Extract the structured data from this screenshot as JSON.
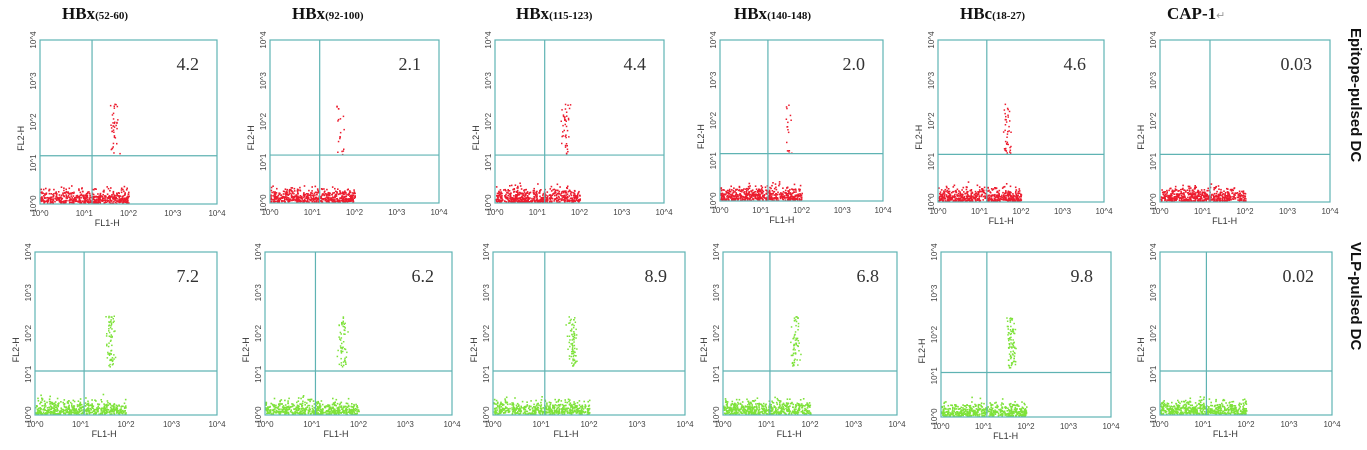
{
  "columns": [
    {
      "name": "HBx",
      "sub": "(52-60)"
    },
    {
      "name": "HBx",
      "sub": "(92-100)"
    },
    {
      "name": "HBx",
      "sub": "(115-123)"
    },
    {
      "name": "HBx",
      "sub": "(140-148)"
    },
    {
      "name": "HBc",
      "sub": "(18-27)"
    },
    {
      "name": "CAP-1",
      "sub": "↵"
    }
  ],
  "rows": [
    "Epitope-pulsed DC",
    "VLP-pulsed DC"
  ],
  "colors": {
    "red_dots": "#ec1c2e",
    "green_dots": "#7ee23a",
    "gate_line": "#5fb3b3",
    "frame": "#222222"
  },
  "chart_data": [
    {
      "type": "scatter",
      "row": "Epitope-pulsed DC",
      "column": "HBx(52-60)",
      "color": "red",
      "xlabel": "FL1-H",
      "ylabel": "FL2-H",
      "xscale": "log",
      "yscale": "log",
      "xlim": [
        1,
        10000
      ],
      "ylim": [
        1,
        10000
      ],
      "xticks": [
        "10^0",
        "10^1",
        "10^2",
        "10^3",
        "10^4"
      ],
      "yticks": [
        "10^0",
        "10^1",
        "10^2",
        "10^3",
        "10^4"
      ],
      "quadrant_gate": {
        "x": 15,
        "y": 15
      },
      "upper_right_percent": "4.2"
    },
    {
      "type": "scatter",
      "row": "Epitope-pulsed DC",
      "column": "HBx(92-100)",
      "color": "red",
      "xlabel": "",
      "ylabel": "FL2-H",
      "xscale": "log",
      "yscale": "log",
      "xlim": [
        1,
        10000
      ],
      "ylim": [
        1,
        10000
      ],
      "xticks": [
        "10^0",
        "10^1",
        "10^2",
        "10^3",
        "10^4"
      ],
      "yticks": [
        "10^0",
        "10^1",
        "10^2",
        "10^3",
        "10^4"
      ],
      "quadrant_gate": {
        "x": 15,
        "y": 15
      },
      "upper_right_percent": "2.1"
    },
    {
      "type": "scatter",
      "row": "Epitope-pulsed DC",
      "column": "HBx(115-123)",
      "color": "red",
      "xlabel": "",
      "ylabel": "FL2-H",
      "xscale": "log",
      "yscale": "log",
      "xlim": [
        1,
        10000
      ],
      "ylim": [
        1,
        10000
      ],
      "xticks": [
        "10^0",
        "10^1",
        "10^2",
        "10^3",
        "10^4"
      ],
      "yticks": [
        "10^0",
        "10^1",
        "10^2",
        "10^3",
        "10^4"
      ],
      "quadrant_gate": {
        "x": 15,
        "y": 15
      },
      "upper_right_percent": "4.4"
    },
    {
      "type": "scatter",
      "row": "Epitope-pulsed DC",
      "column": "HBx(140-148)",
      "color": "red",
      "xlabel": "FL1-H",
      "ylabel": "FL2-H",
      "xscale": "log",
      "yscale": "log",
      "xlim": [
        1,
        10000
      ],
      "ylim": [
        1,
        10000
      ],
      "xticks": [
        "10^0",
        "10^1",
        "10^2",
        "10^3",
        "10^4"
      ],
      "yticks": [
        "10^0",
        "10^1",
        "10^2",
        "10^3",
        "10^4"
      ],
      "quadrant_gate": {
        "x": 15,
        "y": 15
      },
      "upper_right_percent": "2.0"
    },
    {
      "type": "scatter",
      "row": "Epitope-pulsed DC",
      "column": "HBc(18-27)",
      "color": "red",
      "xlabel": "FL1-H",
      "ylabel": "FL2-H",
      "xscale": "log",
      "yscale": "log",
      "xlim": [
        1,
        10000
      ],
      "ylim": [
        1,
        10000
      ],
      "xticks": [
        "10^0",
        "10^1",
        "10^2",
        "10^3",
        "10^4"
      ],
      "yticks": [
        "10^0",
        "10^1",
        "10^2",
        "10^3",
        "10^4"
      ],
      "quadrant_gate": {
        "x": 15,
        "y": 15
      },
      "upper_right_percent": "4.6"
    },
    {
      "type": "scatter",
      "row": "Epitope-pulsed DC",
      "column": "CAP-1",
      "color": "red",
      "xlabel": "FL1-H",
      "ylabel": "FL2-H",
      "xscale": "log",
      "yscale": "log",
      "xlim": [
        1,
        10000
      ],
      "ylim": [
        1,
        10000
      ],
      "xticks": [
        "10^0",
        "10^1",
        "10^2",
        "10^3",
        "10^4"
      ],
      "yticks": [
        "10^0",
        "10^1",
        "10^2",
        "10^3",
        "10^4"
      ],
      "quadrant_gate": {
        "x": 15,
        "y": 15
      },
      "upper_right_percent": "0.03"
    },
    {
      "type": "scatter",
      "row": "VLP-pulsed DC",
      "column": "HBx(52-60)",
      "color": "green",
      "xlabel": "FL1-H",
      "ylabel": "FL2-H",
      "xscale": "log",
      "yscale": "log",
      "xlim": [
        1,
        10000
      ],
      "ylim": [
        1,
        10000
      ],
      "xticks": [
        "10^0",
        "10^1",
        "10^2",
        "10^3",
        "10^4"
      ],
      "yticks": [
        "10^0",
        "10^1",
        "10^2",
        "10^3",
        "10^4"
      ],
      "quadrant_gate": {
        "x": 12,
        "y": 12
      },
      "upper_right_percent": "7.2"
    },
    {
      "type": "scatter",
      "row": "VLP-pulsed DC",
      "column": "HBx(92-100)",
      "color": "green",
      "xlabel": "FL1-H",
      "ylabel": "FL2-H",
      "xscale": "log",
      "yscale": "log",
      "xlim": [
        1,
        10000
      ],
      "ylim": [
        1,
        10000
      ],
      "xticks": [
        "10^0",
        "10^1",
        "10^2",
        "10^3",
        "10^4"
      ],
      "yticks": [
        "10^0",
        "10^1",
        "10^2",
        "10^3",
        "10^4"
      ],
      "quadrant_gate": {
        "x": 12,
        "y": 12
      },
      "upper_right_percent": "6.2"
    },
    {
      "type": "scatter",
      "row": "VLP-pulsed DC",
      "column": "HBx(115-123)",
      "color": "green",
      "xlabel": "FL1-H",
      "ylabel": "FL2-H",
      "xscale": "log",
      "yscale": "log",
      "xlim": [
        1,
        10000
      ],
      "ylim": [
        1,
        10000
      ],
      "xticks": [
        "10^0",
        "10^1",
        "10^2",
        "10^3",
        "10^4"
      ],
      "yticks": [
        "10^0",
        "10^1",
        "10^2",
        "10^3",
        "10^4"
      ],
      "quadrant_gate": {
        "x": 12,
        "y": 12
      },
      "upper_right_percent": "8.9"
    },
    {
      "type": "scatter",
      "row": "VLP-pulsed DC",
      "column": "HBx(140-148)",
      "color": "green",
      "xlabel": "FL1-H",
      "ylabel": "FL2-H",
      "xscale": "log",
      "yscale": "log",
      "xlim": [
        1,
        10000
      ],
      "ylim": [
        1,
        10000
      ],
      "xticks": [
        "10^0",
        "10^1",
        "10^2",
        "10^3",
        "10^4"
      ],
      "yticks": [
        "10^0",
        "10^1",
        "10^2",
        "10^3",
        "10^4"
      ],
      "quadrant_gate": {
        "x": 12,
        "y": 12
      },
      "upper_right_percent": "6.8"
    },
    {
      "type": "scatter",
      "row": "VLP-pulsed DC",
      "column": "HBc(18-27)",
      "color": "green",
      "xlabel": "FL1-H",
      "ylabel": "FL2-H",
      "xscale": "log",
      "yscale": "log",
      "xlim": [
        1,
        10000
      ],
      "ylim": [
        1,
        10000
      ],
      "xticks": [
        "10^0",
        "10^1",
        "10^2",
        "10^3",
        "10^4"
      ],
      "yticks": [
        "10^0",
        "10^1",
        "10^2",
        "10^3",
        "10^4"
      ],
      "quadrant_gate": {
        "x": 12,
        "y": 12
      },
      "upper_right_percent": "9.8"
    },
    {
      "type": "scatter",
      "row": "VLP-pulsed DC",
      "column": "CAP-1",
      "color": "green",
      "xlabel": "FL1-H",
      "ylabel": "FL2-H",
      "xscale": "log",
      "yscale": "log",
      "xlim": [
        1,
        10000
      ],
      "ylim": [
        1,
        10000
      ],
      "xticks": [
        "10^0",
        "10^1",
        "10^2",
        "10^3",
        "10^4"
      ],
      "yticks": [
        "10^0",
        "10^1",
        "10^2",
        "10^3",
        "10^4"
      ],
      "quadrant_gate": {
        "x": 12,
        "y": 12
      },
      "upper_right_percent": "0.02"
    }
  ]
}
